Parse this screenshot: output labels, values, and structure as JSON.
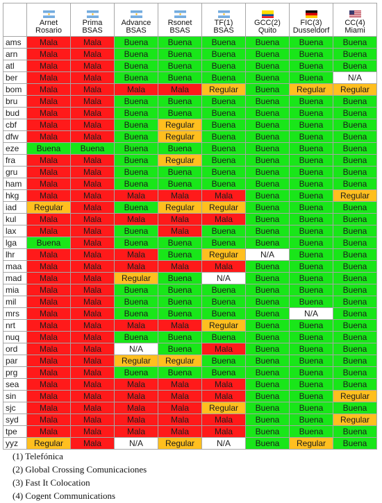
{
  "colors": {
    "Mala": "#ff1a1a",
    "Buena": "#19e619",
    "Regular": "#ffbf1f",
    "N/A": "#ffffff"
  },
  "chart_data": {
    "type": "table",
    "columns": [
      {
        "lines": [
          "Arnet",
          "Rosario"
        ],
        "flag": "argentina-flag-icon"
      },
      {
        "lines": [
          "Prima",
          "BSAS"
        ],
        "flag": "argentina-flag-icon"
      },
      {
        "lines": [
          "Advance",
          "BSAS"
        ],
        "flag": "argentina-flag-icon"
      },
      {
        "lines": [
          "Rsonet",
          "BSAS"
        ],
        "flag": "argentina-flag-icon"
      },
      {
        "lines": [
          "TF(1)",
          "BSAS"
        ],
        "flag": "argentina-flag-icon"
      },
      {
        "lines": [
          "GCC(2)",
          "Quito"
        ],
        "flag": "ecuador-flag-icon"
      },
      {
        "lines": [
          "FIC(3)",
          "Dusseldorf"
        ],
        "flag": "germany-flag-icon"
      },
      {
        "lines": [
          "CC(4)",
          "Miami"
        ],
        "flag": "usa-flag-icon"
      }
    ],
    "rows": [
      {
        "city": "ams",
        "values": [
          "Mala",
          "Mala",
          "Buena",
          "Buena",
          "Buena",
          "Buena",
          "Buena",
          "Buena"
        ]
      },
      {
        "city": "arn",
        "values": [
          "Mala",
          "Mala",
          "Buena",
          "Buena",
          "Buena",
          "Buena",
          "Buena",
          "Buena"
        ]
      },
      {
        "city": "atl",
        "values": [
          "Mala",
          "Mala",
          "Buena",
          "Buena",
          "Buena",
          "Buena",
          "Buena",
          "Buena"
        ]
      },
      {
        "city": "ber",
        "values": [
          "Mala",
          "Mala",
          "Buena",
          "Buena",
          "Buena",
          "Buena",
          "Buena",
          "N/A"
        ]
      },
      {
        "city": "bom",
        "values": [
          "Mala",
          "Mala",
          "Mala",
          "Mala",
          "Regular",
          "Buena",
          "Regular",
          "Regular"
        ]
      },
      {
        "city": "bru",
        "values": [
          "Mala",
          "Mala",
          "Buena",
          "Buena",
          "Buena",
          "Buena",
          "Buena",
          "Buena"
        ]
      },
      {
        "city": "bud",
        "values": [
          "Mala",
          "Mala",
          "Buena",
          "Buena",
          "Buena",
          "Buena",
          "Buena",
          "Buena"
        ]
      },
      {
        "city": "cbf",
        "values": [
          "Mala",
          "Mala",
          "Buena",
          "Regular",
          "Buena",
          "Buena",
          "Buena",
          "Buena"
        ]
      },
      {
        "city": "dfw",
        "values": [
          "Mala",
          "Mala",
          "Buena",
          "Regular",
          "Buena",
          "Buena",
          "Buena",
          "Buena"
        ]
      },
      {
        "city": "eze",
        "values": [
          "Buena",
          "Buena",
          "Buena",
          "Buena",
          "Buena",
          "Buena",
          "Buena",
          "Buena"
        ]
      },
      {
        "city": "fra",
        "values": [
          "Mala",
          "Mala",
          "Buena",
          "Regular",
          "Buena",
          "Buena",
          "Buena",
          "Buena"
        ]
      },
      {
        "city": "gru",
        "values": [
          "Mala",
          "Mala",
          "Buena",
          "Buena",
          "Buena",
          "Buena",
          "Buena",
          "Buena"
        ]
      },
      {
        "city": "ham",
        "values": [
          "Mala",
          "Mala",
          "Buena",
          "Buena",
          "Buena",
          "Buena",
          "Buena",
          "Buena"
        ]
      },
      {
        "city": "hkg",
        "values": [
          "Mala",
          "Mala",
          "Mala",
          "Mala",
          "Mala",
          "Buena",
          "Buena",
          "Regular"
        ]
      },
      {
        "city": "iad",
        "values": [
          "Regular",
          "Mala",
          "Buena",
          "Regular",
          "Regular",
          "Buena",
          "Buena",
          "Buena"
        ]
      },
      {
        "city": "kul",
        "values": [
          "Mala",
          "Mala",
          "Mala",
          "Mala",
          "Mala",
          "Buena",
          "Buena",
          "Buena"
        ]
      },
      {
        "city": "lax",
        "values": [
          "Mala",
          "Mala",
          "Buena",
          "Mala",
          "Buena",
          "Buena",
          "Buena",
          "Buena"
        ]
      },
      {
        "city": "lga",
        "values": [
          "Buena",
          "Mala",
          "Buena",
          "Buena",
          "Buena",
          "Buena",
          "Buena",
          "Buena"
        ]
      },
      {
        "city": "lhr",
        "values": [
          "Mala",
          "Mala",
          "Mala",
          "Buena",
          "Regular",
          "N/A",
          "Buena",
          "Buena"
        ]
      },
      {
        "city": "maa",
        "values": [
          "Mala",
          "Mala",
          "Mala",
          "Mala",
          "Mala",
          "Buena",
          "Buena",
          "Buena"
        ]
      },
      {
        "city": "mad",
        "values": [
          "Mala",
          "Mala",
          "Regular",
          "Buena",
          "N/A",
          "Buena",
          "Buena",
          "Buena"
        ]
      },
      {
        "city": "mia",
        "values": [
          "Mala",
          "Mala",
          "Buena",
          "Buena",
          "Buena",
          "Buena",
          "Buena",
          "Buena"
        ]
      },
      {
        "city": "mil",
        "values": [
          "Mala",
          "Mala",
          "Buena",
          "Buena",
          "Buena",
          "Buena",
          "Buena",
          "Buena"
        ]
      },
      {
        "city": "mrs",
        "values": [
          "Mala",
          "Mala",
          "Buena",
          "Buena",
          "Buena",
          "Buena",
          "N/A",
          "Buena"
        ]
      },
      {
        "city": "nrt",
        "values": [
          "Mala",
          "Mala",
          "Mala",
          "Mala",
          "Regular",
          "Buena",
          "Buena",
          "Buena"
        ]
      },
      {
        "city": "nuq",
        "values": [
          "Mala",
          "Mala",
          "Buena",
          "Buena",
          "Buena",
          "Buena",
          "Buena",
          "Buena"
        ]
      },
      {
        "city": "ord",
        "values": [
          "Mala",
          "Mala",
          "N/A",
          "Buena",
          "Mala",
          "Buena",
          "Buena",
          "Buena"
        ]
      },
      {
        "city": "par",
        "values": [
          "Mala",
          "Mala",
          "Regular",
          "Regular",
          "Buena",
          "Buena",
          "Buena",
          "Buena"
        ]
      },
      {
        "city": "prg",
        "values": [
          "Mala",
          "Mala",
          "Buena",
          "Buena",
          "Buena",
          "Buena",
          "Buena",
          "Buena"
        ]
      },
      {
        "city": "sea",
        "values": [
          "Mala",
          "Mala",
          "Mala",
          "Mala",
          "Mala",
          "Buena",
          "Buena",
          "Buena"
        ]
      },
      {
        "city": "sin",
        "values": [
          "Mala",
          "Mala",
          "Mala",
          "Mala",
          "Mala",
          "Buena",
          "Buena",
          "Regular"
        ]
      },
      {
        "city": "sjc",
        "values": [
          "Mala",
          "Mala",
          "Mala",
          "Mala",
          "Regular",
          "Buena",
          "Buena",
          "Buena"
        ]
      },
      {
        "city": "syd",
        "values": [
          "Mala",
          "Mala",
          "Mala",
          "Mala",
          "Mala",
          "Buena",
          "Buena",
          "Regular"
        ]
      },
      {
        "city": "tpe",
        "values": [
          "Mala",
          "Mala",
          "Mala",
          "Mala",
          "Mala",
          "Buena",
          "Buena",
          "Buena"
        ]
      },
      {
        "city": "yyz",
        "values": [
          "Regular",
          "Mala",
          "N/A",
          "Regular",
          "N/A",
          "Buena",
          "Regular",
          "Buena"
        ]
      }
    ]
  },
  "notes": [
    "(1)  Telefónica",
    "(2)  Global Crossing Comunicaciones",
    "(3)  Fast It Colocation",
    "(4)  Cogent Communications"
  ]
}
